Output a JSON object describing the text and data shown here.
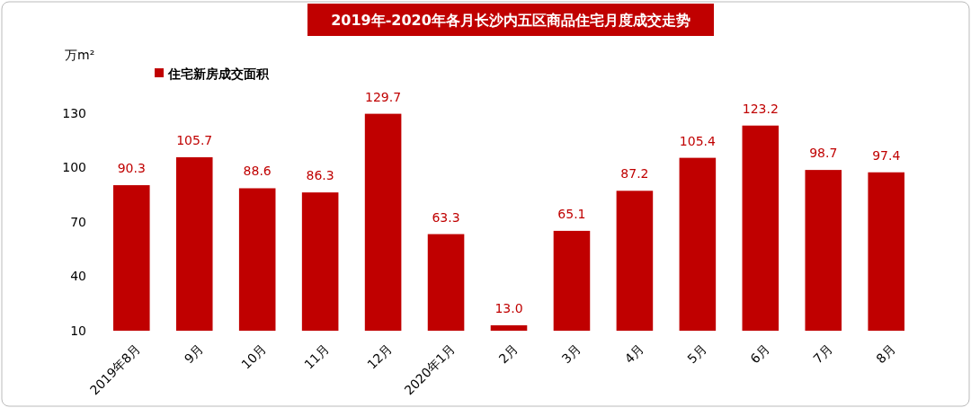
{
  "chart_data": {
    "type": "bar",
    "title": "2019年-2020年各月长沙内五区商品住宅月度成交走势",
    "ylabel": "万m²",
    "categories": [
      "2019年8月",
      "9月",
      "10月",
      "11月",
      "12月",
      "2020年1月",
      "2月",
      "3月",
      "4月",
      "5月",
      "6月",
      "7月",
      "8月"
    ],
    "series": [
      {
        "name": "住宅新房成交面积",
        "color": "#c00000",
        "values": [
          90.3,
          105.7,
          88.6,
          86.3,
          129.7,
          63.3,
          13.0,
          65.1,
          87.2,
          105.4,
          123.2,
          98.7,
          97.4
        ],
        "value_labels": [
          "90.3",
          "105.7",
          "88.6",
          "86.3",
          "129.7",
          "63.3",
          "13.0",
          "65.1",
          "87.2",
          "105.4",
          "123.2",
          "98.7",
          "97.4"
        ]
      }
    ],
    "ylim": [
      10,
      130
    ],
    "yticks": [
      10,
      40,
      70,
      100,
      130
    ],
    "grid": false,
    "legend": "top left"
  }
}
